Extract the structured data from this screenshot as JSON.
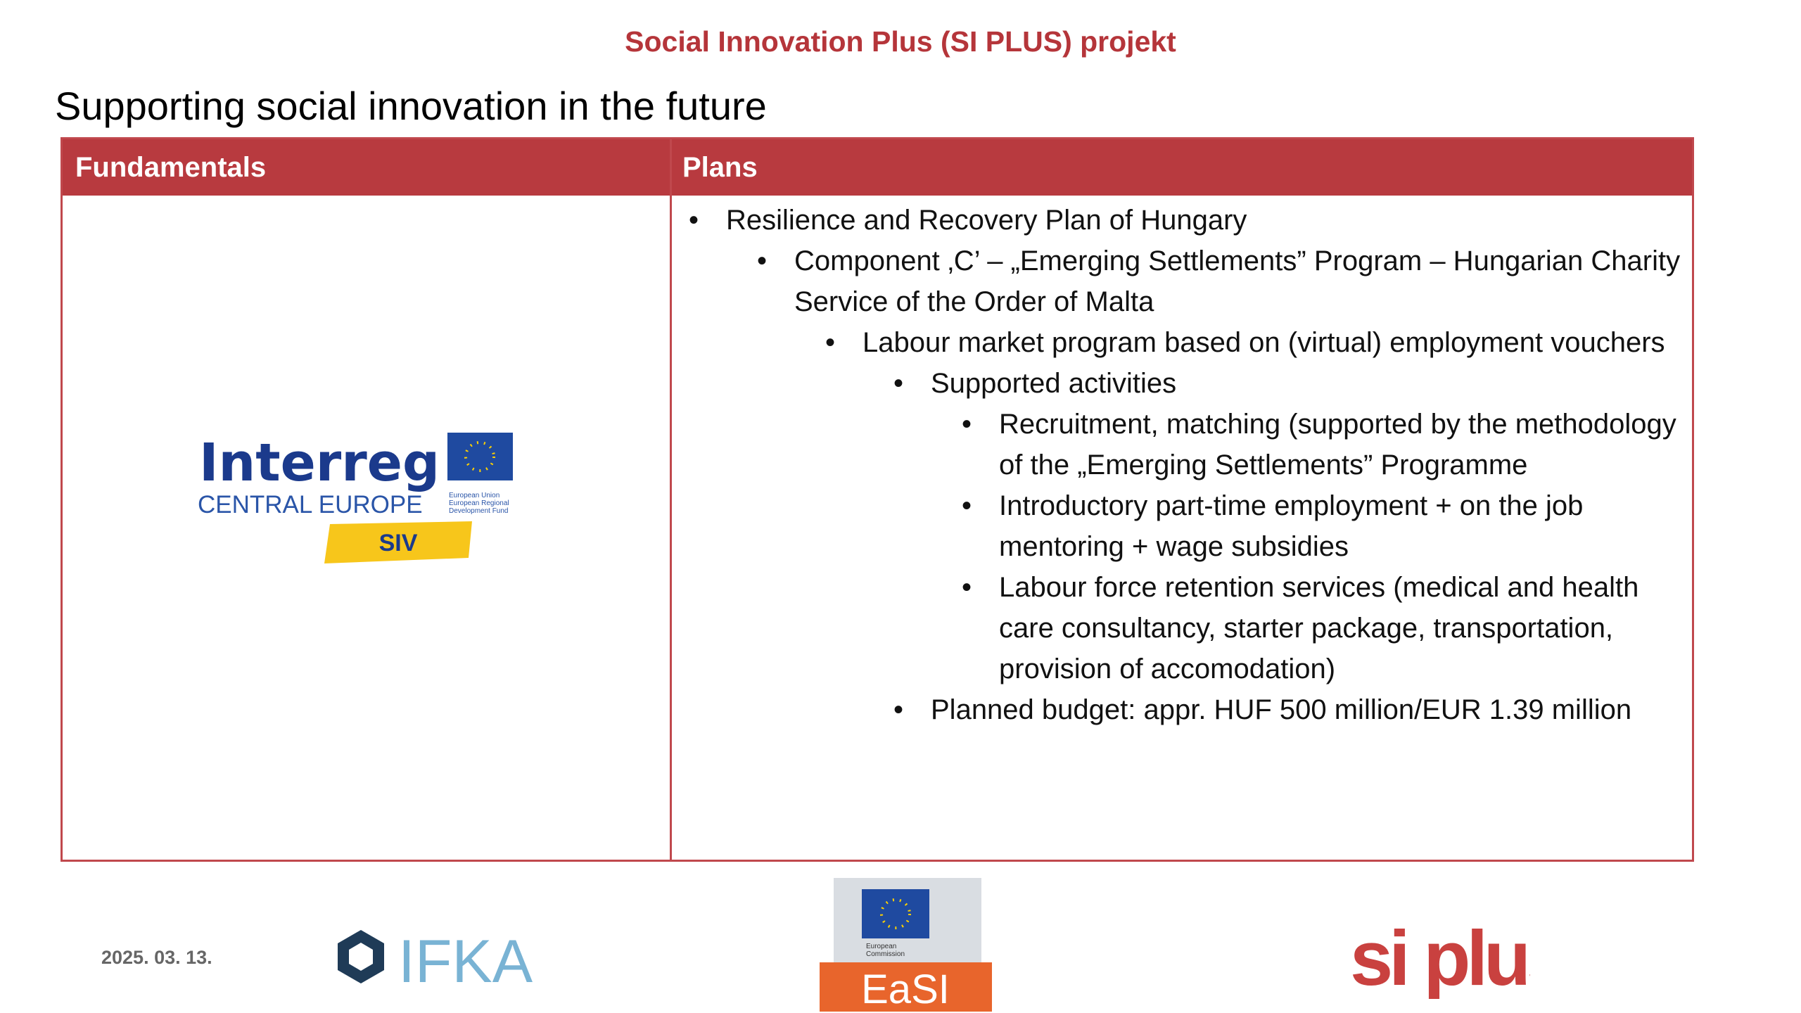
{
  "header": {
    "title": "Social Innovation Plus (SI PLUS) projekt"
  },
  "slide": {
    "title": "Supporting social innovation in the future"
  },
  "table": {
    "columns": [
      "Fundamentals",
      "Plans"
    ],
    "plans": [
      {
        "text": "Resilience and Recovery Plan of Hungary",
        "children": [
          {
            "text": "Component ‚C’ – „Emerging Settlements” Program – Hungarian Charity Service of the Order of Malta",
            "children": [
              {
                "text": "Labour market program based on (virtual) employment vouchers",
                "children": [
                  {
                    "text": "Supported activities",
                    "children": [
                      {
                        "text": "Recruitment, matching (supported by the methodology of the „Emerging Settlements” Programme"
                      },
                      {
                        "text": "Introductory part-time employment + on the job mentoring + wage subsidies"
                      },
                      {
                        "text": "Labour force retention services (medical and health care consultancy, starter package, transportation, provision of accomodation)"
                      }
                    ]
                  },
                  {
                    "text": "Planned budget: appr. HUF 500 million/EUR 1.39 million"
                  }
                ]
              }
            ]
          }
        ]
      }
    ]
  },
  "logos": {
    "interreg": {
      "name": "Interreg",
      "region": "CENTRAL EUROPE",
      "fund": [
        "European Union",
        "European Regional",
        "Development Fund"
      ],
      "project": "SIV"
    },
    "ifka": "IFKA",
    "easi": {
      "name": "EaSI",
      "commission": [
        "European",
        "Commission"
      ]
    },
    "siplus": "si plus"
  },
  "footer": {
    "date": "2025. 03. 13."
  }
}
